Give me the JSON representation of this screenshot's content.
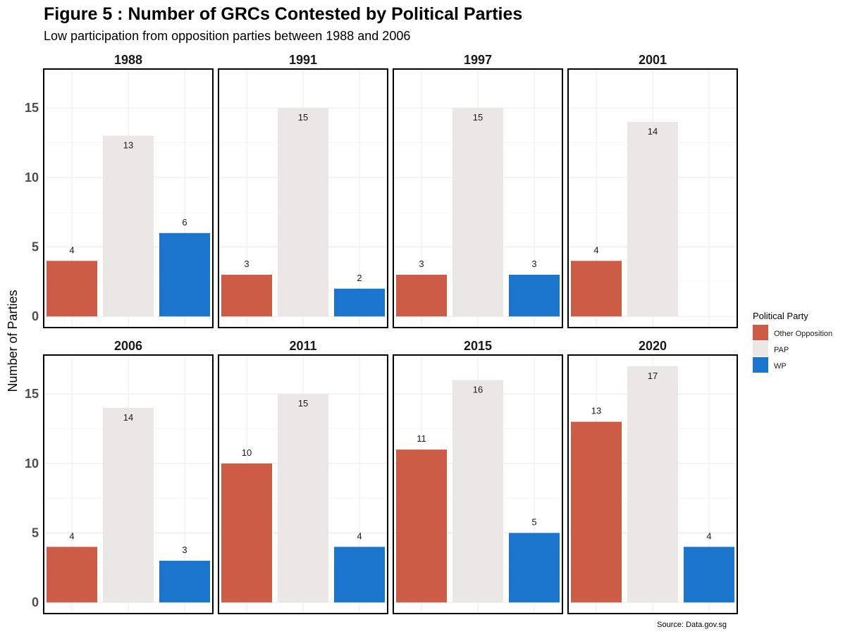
{
  "chart_data": {
    "type": "bar",
    "title": "Figure 5 : Number of GRCs Contested by Political Parties",
    "subtitle": "Low participation from opposition parties between 1988 and 2006",
    "ylabel": "Number of Parties",
    "xlabel": "",
    "ylim": [
      -0.8,
      17.8
    ],
    "yticks": [
      0,
      5,
      10,
      15
    ],
    "grid": true,
    "legend": {
      "title": "Political Party",
      "placement": "right",
      "entries": [
        "Other Opposition",
        "PAP",
        "WP"
      ]
    },
    "caption": "Source: Data.gov.sg",
    "categories": [
      "Other Opposition",
      "PAP",
      "WP"
    ],
    "colors": {
      "Other Opposition": "#cd5c47",
      "PAP": "#ebe7e6",
      "WP": "#1c75cd"
    },
    "panels": [
      {
        "facet": "1988",
        "values": [
          4,
          13,
          6
        ]
      },
      {
        "facet": "1991",
        "values": [
          3,
          15,
          2
        ]
      },
      {
        "facet": "1997",
        "values": [
          3,
          15,
          3
        ]
      },
      {
        "facet": "2001",
        "values": [
          4,
          14,
          null
        ]
      },
      {
        "facet": "2006",
        "values": [
          4,
          14,
          3
        ]
      },
      {
        "facet": "2011",
        "values": [
          10,
          15,
          4
        ]
      },
      {
        "facet": "2015",
        "values": [
          11,
          16,
          5
        ]
      },
      {
        "facet": "2020",
        "values": [
          13,
          17,
          4
        ]
      }
    ]
  }
}
